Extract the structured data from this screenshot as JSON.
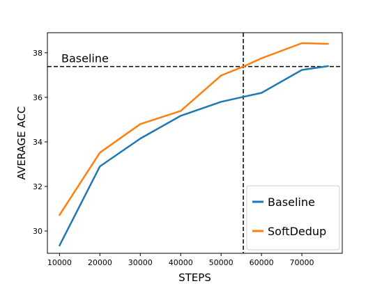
{
  "chart_data": {
    "type": "line",
    "title": "",
    "xlabel": "STEPS",
    "ylabel": "AVERAGE ACC",
    "xlim": [
      7000,
      80000
    ],
    "ylim": [
      29.0,
      38.9
    ],
    "xticks": [
      10000,
      20000,
      30000,
      40000,
      50000,
      60000,
      70000
    ],
    "yticks": [
      30,
      32,
      34,
      36,
      38
    ],
    "series": [
      {
        "name": "Baseline",
        "color": "#1f77b4",
        "x": [
          10000,
          20000,
          30000,
          40000,
          50000,
          55500,
          60000,
          70000,
          76500
        ],
        "y": [
          29.35,
          32.9,
          34.15,
          35.17,
          35.8,
          36.02,
          36.2,
          37.23,
          37.4
        ]
      },
      {
        "name": "SoftDedup",
        "color": "#ff7f0e",
        "x": [
          10000,
          20000,
          30000,
          40000,
          50000,
          55500,
          60000,
          70000,
          76500
        ],
        "y": [
          30.72,
          33.52,
          34.8,
          35.39,
          36.98,
          37.38,
          37.75,
          38.43,
          38.4
        ]
      }
    ],
    "reference_lines": {
      "horizontal": {
        "y": 37.38,
        "label": "Baseline",
        "style": "dashed"
      },
      "vertical": {
        "x": 55500,
        "style": "dashed"
      }
    },
    "legend": {
      "position": "bottom-right",
      "entries": [
        "Baseline",
        "SoftDedup"
      ]
    }
  }
}
